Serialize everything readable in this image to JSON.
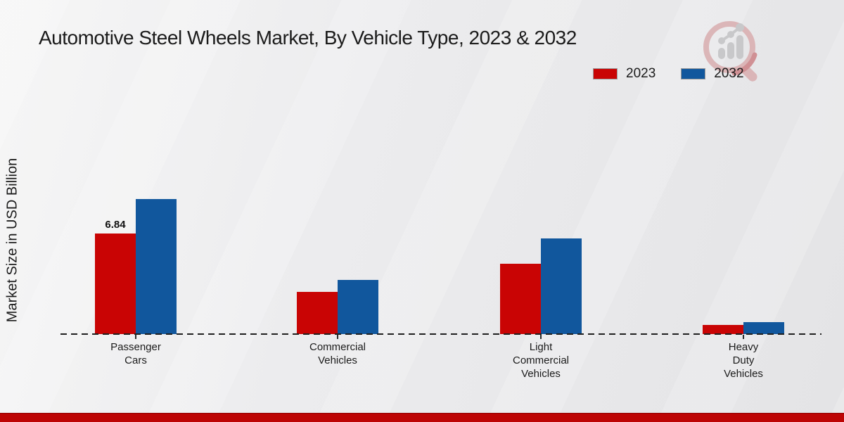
{
  "page": {
    "title": "Automotive Steel Wheels Market, By Vehicle Type, 2023 & 2032",
    "y_axis_label": "Market Size in USD Billion",
    "footer_color": "#bd0404",
    "background_color": "#ececee"
  },
  "legend": {
    "items": [
      {
        "label": "2023",
        "color": "#c90404"
      },
      {
        "label": "2032",
        "color": "#11579d"
      }
    ]
  },
  "watermark": {
    "icon": "magnifier-bar-chart-logo"
  },
  "chart_data": {
    "type": "bar",
    "title": "Automotive Steel Wheels Market, By Vehicle Type, 2023 & 2032",
    "xlabel": "",
    "ylabel": "Market Size in USD Billion",
    "categories": [
      "Passenger Cars",
      "Commercial Vehicles",
      "Light Commercial Vehicles",
      "Heavy Duty Vehicles"
    ],
    "category_labels": [
      "Passenger\nCars",
      "Commercial\nVehicles",
      "Light\nCommercial\nVehicles",
      "Heavy\nDuty\nVehicles"
    ],
    "series": [
      {
        "name": "2023",
        "color": "#c90404",
        "values": [
          6.84,
          2.9,
          4.8,
          0.6
        ]
      },
      {
        "name": "2032",
        "color": "#11579d",
        "values": [
          9.2,
          3.7,
          6.5,
          0.8
        ]
      }
    ],
    "annotations": [
      {
        "series_index": 0,
        "category_index": 0,
        "text": "6.84"
      }
    ],
    "ylim": [
      0,
      10
    ],
    "grid": false,
    "legend_position": "top-right",
    "baseline_style": "dashed"
  }
}
